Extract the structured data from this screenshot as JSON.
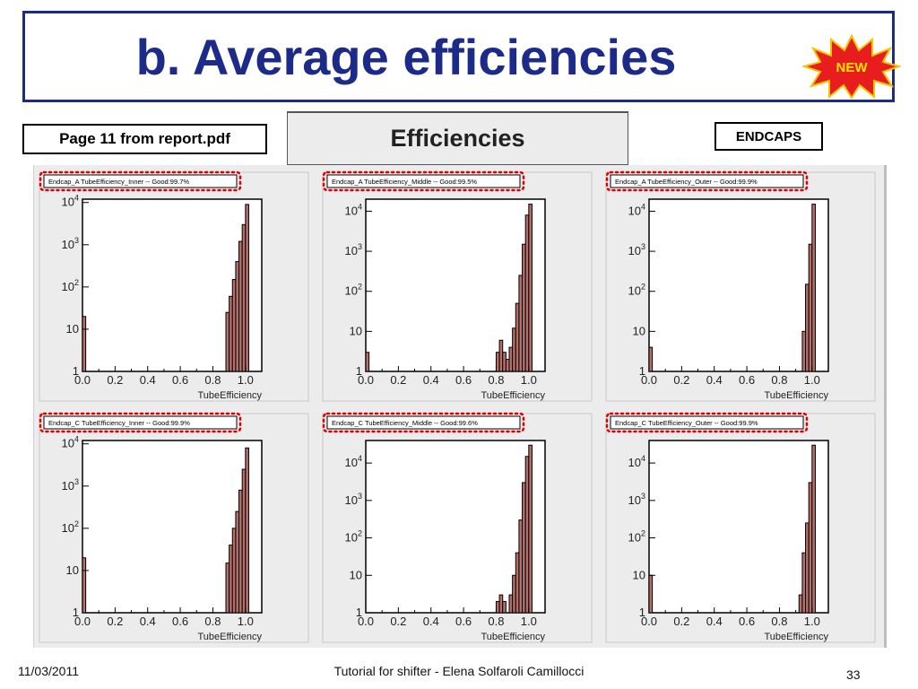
{
  "slide": {
    "title": "b. Average efficiencies",
    "new_badge": "NEW",
    "report_note": "Page 11 from report.pdf",
    "header": "Efficiencies",
    "endcaps_label": "ENDCAPS",
    "footer_date": "11/03/2011",
    "footer_center": "Tutorial for shifter - Elena Solfaroli Camillocci",
    "page_number": "33"
  },
  "colors": {
    "title": "#1c2a8a",
    "bar_fill": "#b5706a",
    "highlight": "#e00000",
    "panel_bg": "#ececec"
  },
  "chart_data": [
    {
      "type": "bar",
      "title": "Endcap_A TubeEfficiency_Inner -- Good:99.7%",
      "xlabel": "TubeEfficiency",
      "ylabel": "",
      "yscale": "log",
      "xlim": [
        0,
        1.1
      ],
      "ylim": [
        1,
        12000
      ],
      "xticks": [
        "0.0",
        "0.2",
        "0.4",
        "0.6",
        "0.8",
        "1.0"
      ],
      "yticks": [
        "1",
        "10",
        "10^2",
        "10^3",
        "10^4"
      ],
      "bins": [
        [
          0.0,
          20
        ],
        [
          0.88,
          25
        ],
        [
          0.9,
          60
        ],
        [
          0.92,
          150
        ],
        [
          0.94,
          400
        ],
        [
          0.96,
          1200
        ],
        [
          0.98,
          3000
        ],
        [
          1.0,
          9000
        ]
      ]
    },
    {
      "type": "bar",
      "title": "Endcap_A TubeEfficiency_Middle -- Good:99.5%",
      "xlabel": "TubeEfficiency",
      "ylabel": "",
      "yscale": "log",
      "xlim": [
        0,
        1.1
      ],
      "ylim": [
        1,
        20000
      ],
      "xticks": [
        "0.0",
        "0.2",
        "0.4",
        "0.6",
        "0.8",
        "1.0"
      ],
      "yticks": [
        "1",
        "10",
        "10^2",
        "10^3",
        "10^4"
      ],
      "bins": [
        [
          0.0,
          3
        ],
        [
          0.02,
          1
        ],
        [
          0.12,
          1
        ],
        [
          0.56,
          1
        ],
        [
          0.78,
          1
        ],
        [
          0.8,
          3
        ],
        [
          0.82,
          6
        ],
        [
          0.84,
          3
        ],
        [
          0.86,
          2
        ],
        [
          0.88,
          4
        ],
        [
          0.9,
          12
        ],
        [
          0.92,
          50
        ],
        [
          0.94,
          250
        ],
        [
          0.96,
          1500
        ],
        [
          0.98,
          8000
        ],
        [
          1.0,
          15000
        ]
      ]
    },
    {
      "type": "bar",
      "title": "Endcap_A TubeEfficiency_Outer -- Good:99.9%",
      "xlabel": "TubeEfficiency",
      "ylabel": "",
      "yscale": "log",
      "xlim": [
        0,
        1.1
      ],
      "ylim": [
        1,
        20000
      ],
      "xticks": [
        "0.0",
        "0.2",
        "0.4",
        "0.6",
        "0.8",
        "1.0"
      ],
      "yticks": [
        "1",
        "10",
        "10^2",
        "10^3",
        "10^4"
      ],
      "bins": [
        [
          0.0,
          4
        ],
        [
          0.94,
          10
        ],
        [
          0.96,
          150
        ],
        [
          0.98,
          1500
        ],
        [
          1.0,
          15000
        ]
      ]
    },
    {
      "type": "bar",
      "title": "Endcap_C TubeEfficiency_Inner -- Good:99.9%",
      "xlabel": "TubeEfficiency",
      "ylabel": "",
      "yscale": "log",
      "xlim": [
        0,
        1.1
      ],
      "ylim": [
        1,
        12000
      ],
      "xticks": [
        "0.0",
        "0.2",
        "0.4",
        "0.6",
        "0.8",
        "1.0"
      ],
      "yticks": [
        "1",
        "10",
        "10^2",
        "10^3",
        "10^4"
      ],
      "bins": [
        [
          0.0,
          20
        ],
        [
          0.12,
          1
        ],
        [
          0.88,
          15
        ],
        [
          0.9,
          40
        ],
        [
          0.92,
          100
        ],
        [
          0.94,
          250
        ],
        [
          0.96,
          800
        ],
        [
          0.98,
          2500
        ],
        [
          1.0,
          8000
        ]
      ]
    },
    {
      "type": "bar",
      "title": "Endcap_C TubeEfficiency_Middle -- Good:99.6%",
      "xlabel": "TubeEfficiency",
      "ylabel": "",
      "yscale": "log",
      "xlim": [
        0,
        1.1
      ],
      "ylim": [
        1,
        40000
      ],
      "xticks": [
        "0.0",
        "0.2",
        "0.4",
        "0.6",
        "0.8",
        "1.0"
      ],
      "yticks": [
        "1",
        "10",
        "10^2",
        "10^3",
        "10^4"
      ],
      "bins": [
        [
          0.0,
          1
        ],
        [
          0.8,
          2
        ],
        [
          0.82,
          3
        ],
        [
          0.84,
          2
        ],
        [
          0.86,
          1
        ],
        [
          0.88,
          3
        ],
        [
          0.9,
          10
        ],
        [
          0.92,
          40
        ],
        [
          0.94,
          300
        ],
        [
          0.96,
          3000
        ],
        [
          0.98,
          15000
        ],
        [
          1.0,
          30000
        ]
      ]
    },
    {
      "type": "bar",
      "title": "Endcap_C TubeEfficiency_Outer -- Good:99.9%",
      "xlabel": "TubeEfficiency",
      "ylabel": "",
      "yscale": "log",
      "xlim": [
        0,
        1.1
      ],
      "ylim": [
        1,
        40000
      ],
      "xticks": [
        "0.0",
        "0.2",
        "0.4",
        "0.6",
        "0.8",
        "1.0"
      ],
      "yticks": [
        "1",
        "10",
        "10^2",
        "10^3",
        "10^4"
      ],
      "bins": [
        [
          0.0,
          10
        ],
        [
          0.92,
          3
        ],
        [
          0.94,
          40
        ],
        [
          0.96,
          250
        ],
        [
          0.98,
          3000
        ],
        [
          1.0,
          30000
        ]
      ]
    }
  ]
}
